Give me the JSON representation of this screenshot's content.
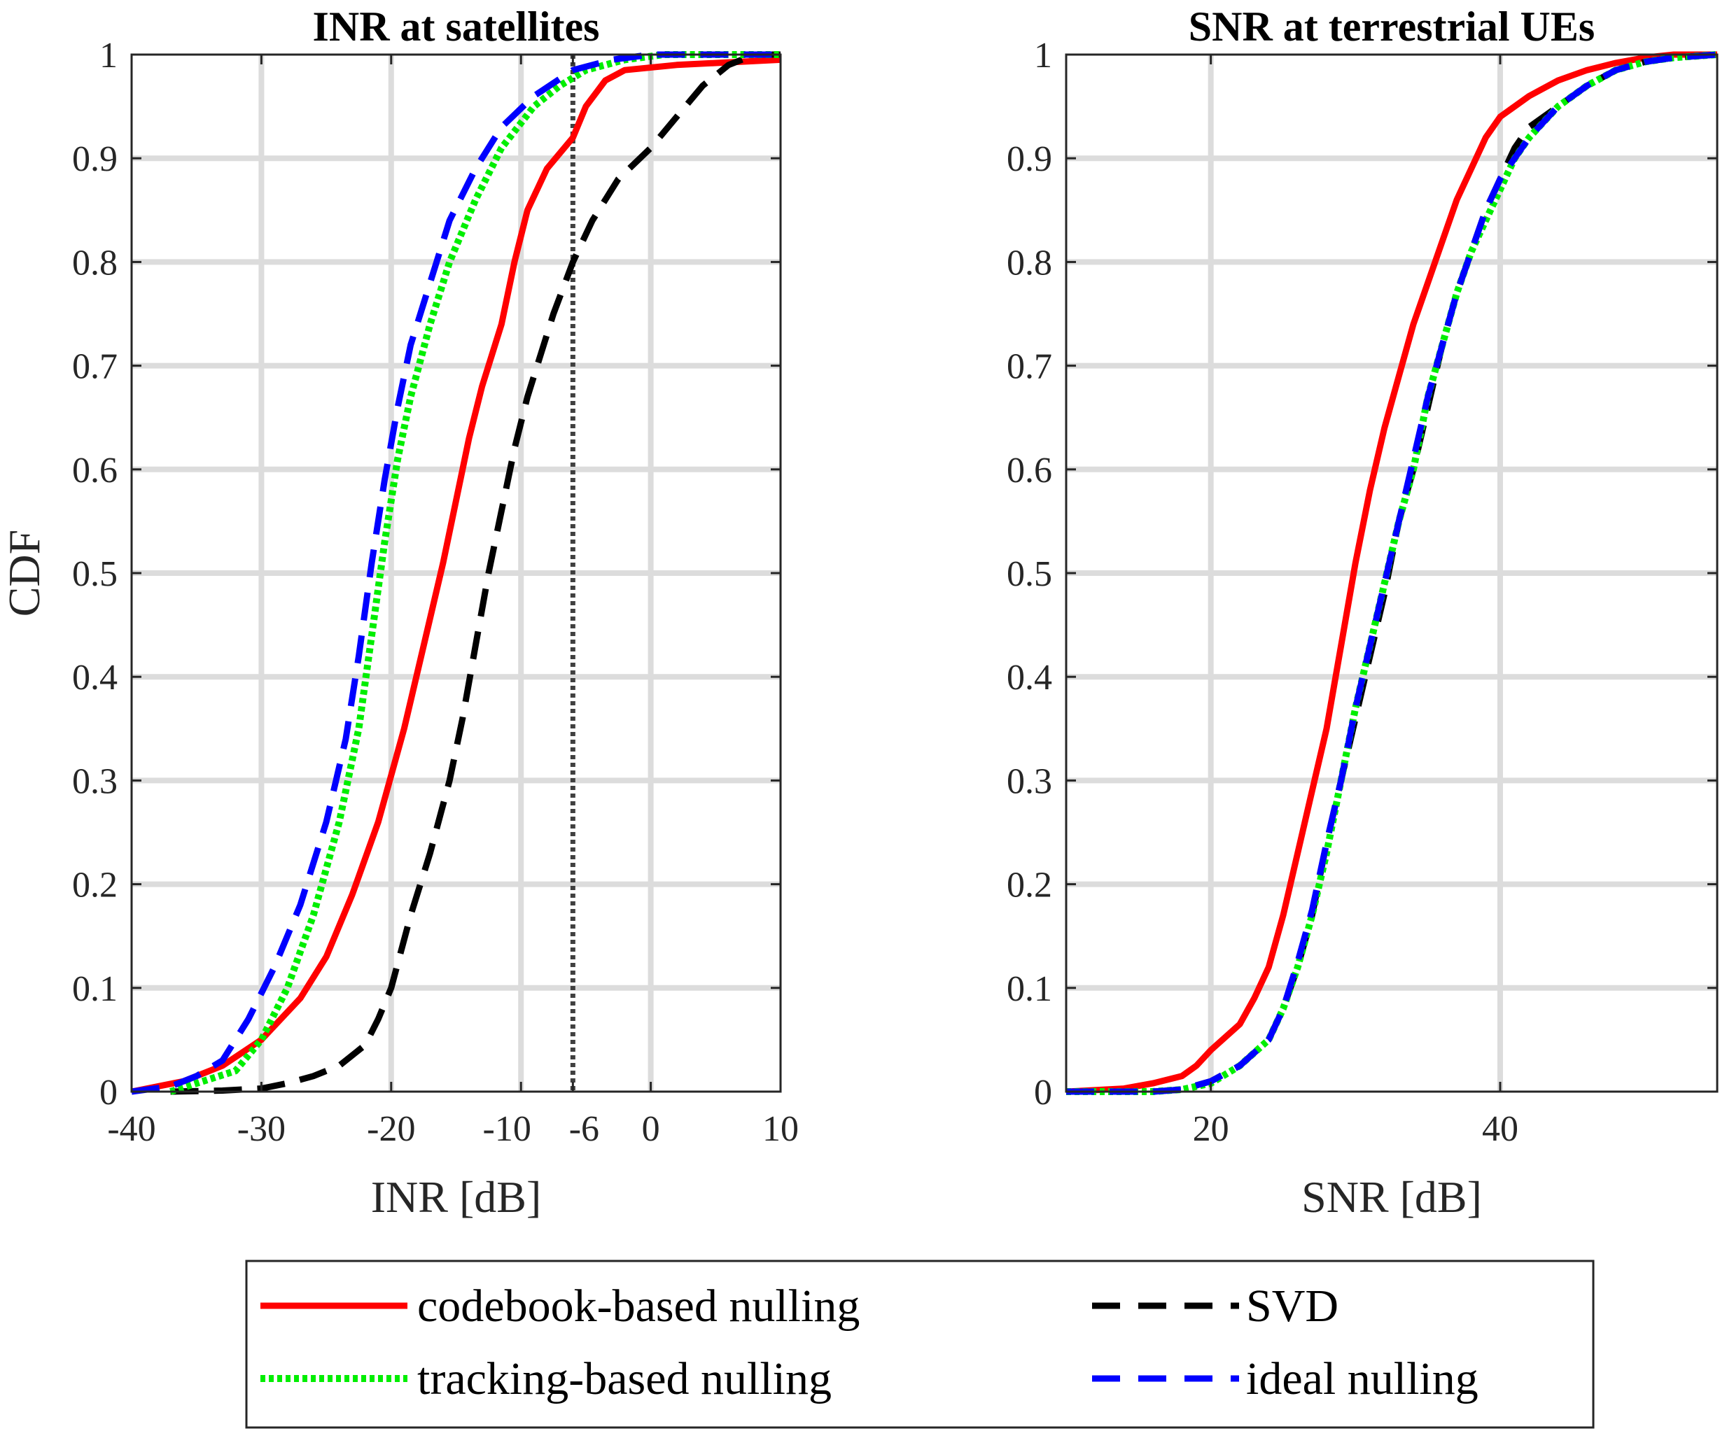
{
  "chart_data": [
    {
      "type": "line",
      "title": "INR at satellites",
      "xlabel": "INR [dB]",
      "ylabel": "CDF",
      "xlim": [
        -40,
        10
      ],
      "ylim": [
        0,
        1
      ],
      "x_ticks": [
        -40,
        -30,
        -20,
        -10,
        -6,
        0,
        10
      ],
      "x_tick_labels": [
        "-40",
        "-30",
        "-20",
        "-10",
        "-6",
        "0",
        "10"
      ],
      "y_ticks": [
        0,
        0.1,
        0.2,
        0.3,
        0.4,
        0.5,
        0.6,
        0.7,
        0.8,
        0.9,
        1
      ],
      "y_tick_labels": [
        "0",
        "0.1",
        "0.2",
        "0.3",
        "0.4",
        "0.5",
        "0.6",
        "0.7",
        "0.8",
        "0.9",
        "1"
      ],
      "grid": true,
      "reference_line": {
        "x": -6,
        "style": "dotted"
      },
      "series": [
        {
          "name": "codebook-based nulling",
          "color": "#ff0000",
          "style": "solid",
          "points": [
            [
              -40,
              0
            ],
            [
              -36,
              0.01
            ],
            [
              -33,
              0.025
            ],
            [
              -30,
              0.05
            ],
            [
              -27,
              0.09
            ],
            [
              -25,
              0.13
            ],
            [
              -23,
              0.19
            ],
            [
              -21,
              0.26
            ],
            [
              -19,
              0.35
            ],
            [
              -17.5,
              0.43
            ],
            [
              -16,
              0.51
            ],
            [
              -15,
              0.57
            ],
            [
              -14,
              0.63
            ],
            [
              -13,
              0.68
            ],
            [
              -11.5,
              0.74
            ],
            [
              -10.5,
              0.8
            ],
            [
              -9.5,
              0.85
            ],
            [
              -8,
              0.89
            ],
            [
              -6,
              0.92
            ],
            [
              -5,
              0.95
            ],
            [
              -3.5,
              0.975
            ],
            [
              -2,
              0.985
            ],
            [
              2,
              0.99
            ],
            [
              10,
              0.995
            ]
          ]
        },
        {
          "name": "tracking-based nulling",
          "color": "#00ee00",
          "style": "dotted",
          "points": [
            [
              -37,
              0
            ],
            [
              -35,
              0.008
            ],
            [
              -32,
              0.02
            ],
            [
              -30,
              0.05
            ],
            [
              -28,
              0.1
            ],
            [
              -26,
              0.17
            ],
            [
              -24,
              0.26
            ],
            [
              -22.5,
              0.35
            ],
            [
              -21.5,
              0.44
            ],
            [
              -20.5,
              0.53
            ],
            [
              -19.5,
              0.61
            ],
            [
              -18.5,
              0.67
            ],
            [
              -17,
              0.74
            ],
            [
              -15.5,
              0.8
            ],
            [
              -13.5,
              0.86
            ],
            [
              -11.5,
              0.91
            ],
            [
              -9,
              0.95
            ],
            [
              -7,
              0.97
            ],
            [
              -5,
              0.985
            ],
            [
              -2,
              0.995
            ],
            [
              1,
              1
            ],
            [
              10,
              1
            ]
          ]
        },
        {
          "name": "SVD",
          "color": "#000000",
          "style": "dashed",
          "points": [
            [
              -37,
              0
            ],
            [
              -33,
              0.001
            ],
            [
              -30,
              0.003
            ],
            [
              -28,
              0.008
            ],
            [
              -26,
              0.015
            ],
            [
              -24,
              0.025
            ],
            [
              -22,
              0.045
            ],
            [
              -21,
              0.07
            ],
            [
              -20,
              0.1
            ],
            [
              -18.5,
              0.17
            ],
            [
              -17,
              0.23
            ],
            [
              -15.5,
              0.3
            ],
            [
              -14.5,
              0.36
            ],
            [
              -13.5,
              0.43
            ],
            [
              -12.5,
              0.5
            ],
            [
              -11.5,
              0.56
            ],
            [
              -10.5,
              0.62
            ],
            [
              -9.5,
              0.67
            ],
            [
              -8.5,
              0.71
            ],
            [
              -7.5,
              0.75
            ],
            [
              -6,
              0.8
            ],
            [
              -4.5,
              0.84
            ],
            [
              -2.5,
              0.88
            ],
            [
              0,
              0.91
            ],
            [
              2,
              0.94
            ],
            [
              4,
              0.97
            ],
            [
              6,
              0.99
            ],
            [
              8,
              1
            ],
            [
              10,
              1
            ]
          ]
        },
        {
          "name": "ideal nulling",
          "color": "#0000ff",
          "style": "dashed",
          "points": [
            [
              -40,
              0
            ],
            [
              -37,
              0.005
            ],
            [
              -35,
              0.015
            ],
            [
              -33,
              0.03
            ],
            [
              -31,
              0.07
            ],
            [
              -29,
              0.12
            ],
            [
              -27,
              0.18
            ],
            [
              -25,
              0.26
            ],
            [
              -23.5,
              0.34
            ],
            [
              -22.5,
              0.42
            ],
            [
              -21.5,
              0.51
            ],
            [
              -20.5,
              0.59
            ],
            [
              -19.5,
              0.66
            ],
            [
              -18.5,
              0.72
            ],
            [
              -17,
              0.78
            ],
            [
              -15.5,
              0.84
            ],
            [
              -13.5,
              0.89
            ],
            [
              -11.5,
              0.93
            ],
            [
              -9,
              0.96
            ],
            [
              -6,
              0.985
            ],
            [
              -3,
              0.995
            ],
            [
              0,
              1
            ],
            [
              10,
              1
            ]
          ]
        }
      ]
    },
    {
      "type": "line",
      "title": "SNR at terrestrial UEs",
      "xlabel": "SNR [dB]",
      "ylabel": "",
      "xlim": [
        10,
        55
      ],
      "ylim": [
        0,
        1
      ],
      "x_ticks": [
        20,
        40
      ],
      "x_tick_labels": [
        "20",
        "40"
      ],
      "y_ticks": [
        0,
        0.1,
        0.2,
        0.3,
        0.4,
        0.5,
        0.6,
        0.7,
        0.8,
        0.9,
        1
      ],
      "y_tick_labels": [
        "0",
        "0.1",
        "0.2",
        "0.3",
        "0.4",
        "0.5",
        "0.6",
        "0.7",
        "0.8",
        "0.9",
        "1"
      ],
      "grid": true,
      "series": [
        {
          "name": "codebook-based nulling",
          "color": "#ff0000",
          "style": "solid",
          "points": [
            [
              10,
              0
            ],
            [
              14,
              0.003
            ],
            [
              16,
              0.008
            ],
            [
              18,
              0.015
            ],
            [
              19,
              0.025
            ],
            [
              20,
              0.04
            ],
            [
              22,
              0.065
            ],
            [
              23,
              0.09
            ],
            [
              24,
              0.12
            ],
            [
              25,
              0.17
            ],
            [
              26,
              0.23
            ],
            [
              27,
              0.29
            ],
            [
              28,
              0.35
            ],
            [
              29,
              0.43
            ],
            [
              30,
              0.51
            ],
            [
              31,
              0.58
            ],
            [
              32,
              0.64
            ],
            [
              33,
              0.69
            ],
            [
              34,
              0.74
            ],
            [
              35,
              0.78
            ],
            [
              36,
              0.82
            ],
            [
              37,
              0.86
            ],
            [
              38,
              0.89
            ],
            [
              39,
              0.92
            ],
            [
              40,
              0.94
            ],
            [
              42,
              0.96
            ],
            [
              44,
              0.975
            ],
            [
              46,
              0.985
            ],
            [
              48,
              0.992
            ],
            [
              50,
              0.997
            ],
            [
              52,
              1
            ],
            [
              55,
              1
            ]
          ]
        },
        {
          "name": "tracking-based nulling",
          "color": "#00ee00",
          "style": "dotted",
          "points": [
            [
              10,
              0
            ],
            [
              16,
              0
            ],
            [
              18,
              0.002
            ],
            [
              20,
              0.008
            ],
            [
              22,
              0.025
            ],
            [
              24,
              0.05
            ],
            [
              25,
              0.08
            ],
            [
              26,
              0.12
            ],
            [
              27,
              0.17
            ],
            [
              28,
              0.23
            ],
            [
              29,
              0.3
            ],
            [
              30,
              0.37
            ],
            [
              31,
              0.43
            ],
            [
              32,
              0.49
            ],
            [
              33,
              0.55
            ],
            [
              34,
              0.6
            ],
            [
              35,
              0.67
            ],
            [
              36,
              0.72
            ],
            [
              37,
              0.77
            ],
            [
              38,
              0.81
            ],
            [
              39,
              0.84
            ],
            [
              40,
              0.87
            ],
            [
              41,
              0.9
            ],
            [
              42,
              0.92
            ],
            [
              44,
              0.95
            ],
            [
              46,
              0.97
            ],
            [
              48,
              0.985
            ],
            [
              50,
              0.993
            ],
            [
              52,
              0.997
            ],
            [
              55,
              1
            ]
          ]
        },
        {
          "name": "SVD",
          "color": "#000000",
          "style": "dashed",
          "points": [
            [
              10,
              0
            ],
            [
              16,
              0
            ],
            [
              18,
              0.002
            ],
            [
              20,
              0.01
            ],
            [
              22,
              0.025
            ],
            [
              24,
              0.05
            ],
            [
              25,
              0.08
            ],
            [
              26,
              0.12
            ],
            [
              27,
              0.17
            ],
            [
              28,
              0.24
            ],
            [
              29,
              0.3
            ],
            [
              30,
              0.36
            ],
            [
              31,
              0.42
            ],
            [
              32,
              0.48
            ],
            [
              33,
              0.55
            ],
            [
              34,
              0.6
            ],
            [
              35,
              0.66
            ],
            [
              36,
              0.72
            ],
            [
              37,
              0.77
            ],
            [
              38,
              0.81
            ],
            [
              39,
              0.85
            ],
            [
              40,
              0.88
            ],
            [
              41,
              0.91
            ],
            [
              42,
              0.93
            ],
            [
              44,
              0.95
            ],
            [
              46,
              0.97
            ],
            [
              48,
              0.985
            ],
            [
              50,
              0.993
            ],
            [
              52,
              0.997
            ],
            [
              55,
              1
            ]
          ]
        },
        {
          "name": "ideal nulling",
          "color": "#0000ff",
          "style": "dashed",
          "points": [
            [
              10,
              0
            ],
            [
              16,
              0
            ],
            [
              18,
              0.002
            ],
            [
              20,
              0.01
            ],
            [
              22,
              0.025
            ],
            [
              24,
              0.05
            ],
            [
              25,
              0.08
            ],
            [
              26,
              0.125
            ],
            [
              27,
              0.175
            ],
            [
              28,
              0.24
            ],
            [
              29,
              0.3
            ],
            [
              30,
              0.37
            ],
            [
              31,
              0.43
            ],
            [
              32,
              0.49
            ],
            [
              33,
              0.55
            ],
            [
              34,
              0.61
            ],
            [
              35,
              0.67
            ],
            [
              36,
              0.72
            ],
            [
              37,
              0.77
            ],
            [
              38,
              0.81
            ],
            [
              39,
              0.85
            ],
            [
              40,
              0.88
            ],
            [
              41,
              0.9
            ],
            [
              42,
              0.92
            ],
            [
              44,
              0.95
            ],
            [
              46,
              0.97
            ],
            [
              48,
              0.985
            ],
            [
              50,
              0.993
            ],
            [
              52,
              0.997
            ],
            [
              55,
              1
            ]
          ]
        }
      ]
    }
  ],
  "legend": {
    "placement": "bottom-center",
    "items": [
      {
        "label": "codebook-based nulling",
        "color": "#ff0000",
        "style": "solid"
      },
      {
        "label": "SVD",
        "color": "#000000",
        "style": "dashed"
      },
      {
        "label": "tracking-based nulling",
        "color": "#00ee00",
        "style": "dotted"
      },
      {
        "label": "ideal nulling",
        "color": "#0000ff",
        "style": "dashed"
      }
    ]
  }
}
